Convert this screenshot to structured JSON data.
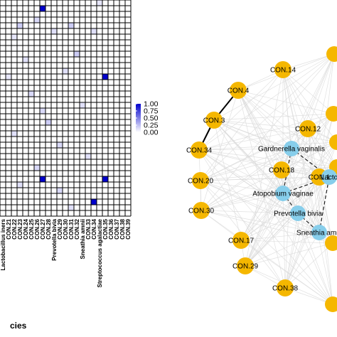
{
  "chart_data": [
    {
      "type": "heatmap",
      "x_axis_title": "cies",
      "columns": [
        "Lactobacillus iners",
        "CON.21",
        "CON.22",
        "CON.23",
        "CON.24",
        "CON.25",
        "CON.26",
        "CON.27",
        "CON.28",
        "Prevotella bivia",
        "CON.29",
        "CON.30",
        "CON.31",
        "CON.32",
        "Sneathia amnii",
        "CON.33",
        "CON.34",
        "Streptococcus agalactiae",
        "CON.35",
        "CON.36",
        "CON.37",
        "CON.38",
        "CON.39"
      ],
      "n_rows": 38,
      "color_scale": {
        "min": 0,
        "max": 1,
        "ticks": [
          "1.00",
          "0.75",
          "0.50",
          "0.25",
          "0.00"
        ],
        "low_color": "#ffffff",
        "high_color": "#0000cd"
      },
      "cells": [
        {
          "row": 1,
          "col": 7,
          "value": 1.0
        },
        {
          "row": 0,
          "col": 17,
          "value": 0.1
        },
        {
          "row": 3,
          "col": 6,
          "value": 0.15
        },
        {
          "row": 4,
          "col": 3,
          "value": 0.2
        },
        {
          "row": 4,
          "col": 12,
          "value": 0.2
        },
        {
          "row": 5,
          "col": 16,
          "value": 0.12
        },
        {
          "row": 5,
          "col": 9,
          "value": 0.12
        },
        {
          "row": 6,
          "col": 2,
          "value": 0.1
        },
        {
          "row": 9,
          "col": 13,
          "value": 0.2
        },
        {
          "row": 10,
          "col": 4,
          "value": 0.12
        },
        {
          "row": 12,
          "col": 11,
          "value": 0.12
        },
        {
          "row": 13,
          "col": 18,
          "value": 1.0
        },
        {
          "row": 13,
          "col": 1,
          "value": 0.1
        },
        {
          "row": 16,
          "col": 5,
          "value": 0.15
        },
        {
          "row": 18,
          "col": 14,
          "value": 0.12
        },
        {
          "row": 19,
          "col": 7,
          "value": 0.15
        },
        {
          "row": 21,
          "col": 8,
          "value": 0.2
        },
        {
          "row": 23,
          "col": 2,
          "value": 0.12
        },
        {
          "row": 25,
          "col": 10,
          "value": 0.15
        },
        {
          "row": 27,
          "col": 15,
          "value": 0.12
        },
        {
          "row": 29,
          "col": 6,
          "value": 0.15
        },
        {
          "row": 31,
          "col": 7,
          "value": 1.0
        },
        {
          "row": 31,
          "col": 18,
          "value": 1.0
        },
        {
          "row": 32,
          "col": 3,
          "value": 0.12
        },
        {
          "row": 33,
          "col": 10,
          "value": 0.15
        },
        {
          "row": 35,
          "col": 16,
          "value": 1.0
        },
        {
          "row": 36,
          "col": 12,
          "value": 0.12
        }
      ]
    },
    {
      "type": "network",
      "nodes": [
        {
          "id": "CON.14",
          "group": "CON"
        },
        {
          "id": "CON.4",
          "group": "CON"
        },
        {
          "id": "CON.3",
          "group": "CON"
        },
        {
          "id": "CON.12",
          "group": "CON"
        },
        {
          "id": "CON.34",
          "group": "CON"
        },
        {
          "id": "Gardnerella vaginalis",
          "group": "species"
        },
        {
          "id": "CON.18",
          "group": "CON"
        },
        {
          "id": "CON.1",
          "group": "CON"
        },
        {
          "id": "Lactobacillus iners",
          "label": "Lacto",
          "group": "species"
        },
        {
          "id": "CON.20",
          "group": "CON"
        },
        {
          "id": "Atopobium vaginae",
          "group": "species"
        },
        {
          "id": "CON.30",
          "group": "CON"
        },
        {
          "id": "Prevotella bivia",
          "group": "species"
        },
        {
          "id": "Sneathia amnii",
          "label": "Sneathia amni",
          "group": "species"
        },
        {
          "id": "CON.17",
          "group": "CON"
        },
        {
          "id": "CON.29",
          "group": "CON"
        },
        {
          "id": "CON.38",
          "group": "CON"
        }
      ],
      "highlighted_edges": [
        [
          "CON.4",
          "CON.3"
        ],
        [
          "CON.3",
          "CON.34"
        ]
      ],
      "colors": {
        "CON": "#f5b700",
        "species": "#87ceeb",
        "background_edge": "#d9d9d9"
      }
    }
  ]
}
